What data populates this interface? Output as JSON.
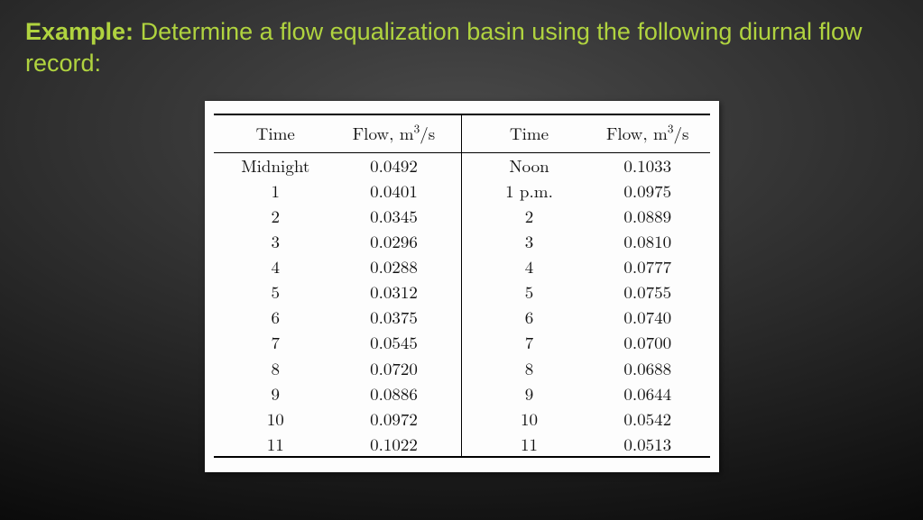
{
  "title": {
    "bold": "Example:",
    "rest": " Determine a flow equalization basin using the following diurnal flow record:"
  },
  "table": {
    "headers": {
      "time": "Time",
      "flow_prefix": "Flow, m",
      "flow_exp": "3",
      "flow_suffix": "/s"
    },
    "rows": [
      {
        "t1": "Midnight",
        "f1": "0.0492",
        "t2": "Noon",
        "f2": "0.1033"
      },
      {
        "t1": "1",
        "f1": "0.0401",
        "t2": "1 p.m.",
        "f2": "0.0975"
      },
      {
        "t1": "2",
        "f1": "0.0345",
        "t2": "2",
        "f2": "0.0889"
      },
      {
        "t1": "3",
        "f1": "0.0296",
        "t2": "3",
        "f2": "0.0810"
      },
      {
        "t1": "4",
        "f1": "0.0288",
        "t2": "4",
        "f2": "0.0777"
      },
      {
        "t1": "5",
        "f1": "0.0312",
        "t2": "5",
        "f2": "0.0755"
      },
      {
        "t1": "6",
        "f1": "0.0375",
        "t2": "6",
        "f2": "0.0740"
      },
      {
        "t1": "7",
        "f1": "0.0545",
        "t2": "7",
        "f2": "0.0700"
      },
      {
        "t1": "8",
        "f1": "0.0720",
        "t2": "8",
        "f2": "0.0688"
      },
      {
        "t1": "9",
        "f1": "0.0886",
        "t2": "9",
        "f2": "0.0644"
      },
      {
        "t1": "10",
        "f1": "0.0972",
        "t2": "10",
        "f2": "0.0542"
      },
      {
        "t1": "11",
        "f1": "0.1022",
        "t2": "11",
        "f2": "0.0513"
      }
    ]
  },
  "colors": {
    "accent": "#b0d33f",
    "table_bg": "#fdfdfd",
    "text": "#111111"
  }
}
